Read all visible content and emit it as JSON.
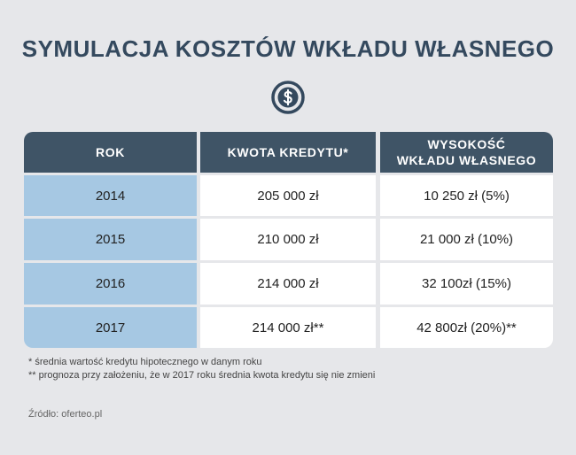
{
  "title": "SYMULACJA KOSZTÓW WKŁADU WŁASNEGO",
  "icon": "dollar-circle-icon",
  "colors": {
    "header_bg": "#3f5466",
    "year_bg": "#a6c8e3",
    "title": "#34495e",
    "background": "#e6e7ea"
  },
  "table": {
    "headers": {
      "year": "ROK",
      "amount": "KWOTA KREDYTU*",
      "down_line1": "WYSOKOŚĆ",
      "down_line2": "WKŁADU WŁASNEGO"
    },
    "rows": [
      {
        "year": "2014",
        "amount": "205 000 zł",
        "down": "10 250 zł (5%)"
      },
      {
        "year": "2015",
        "amount": "210 000 zł",
        "down": "21 000 zł (10%)"
      },
      {
        "year": "2016",
        "amount": "214 000 zł",
        "down": "32 100zł (15%)"
      },
      {
        "year": "2017",
        "amount": "214 000 zł**",
        "down": "42 800zł (20%)**"
      }
    ]
  },
  "notes": [
    "* średnia wartość kredytu hipotecznego w danym roku",
    "** prognoza przy założeniu, że w 2017 roku średnia kwota kredytu się nie zmieni"
  ],
  "source": "Źródło: oferteo.pl"
}
